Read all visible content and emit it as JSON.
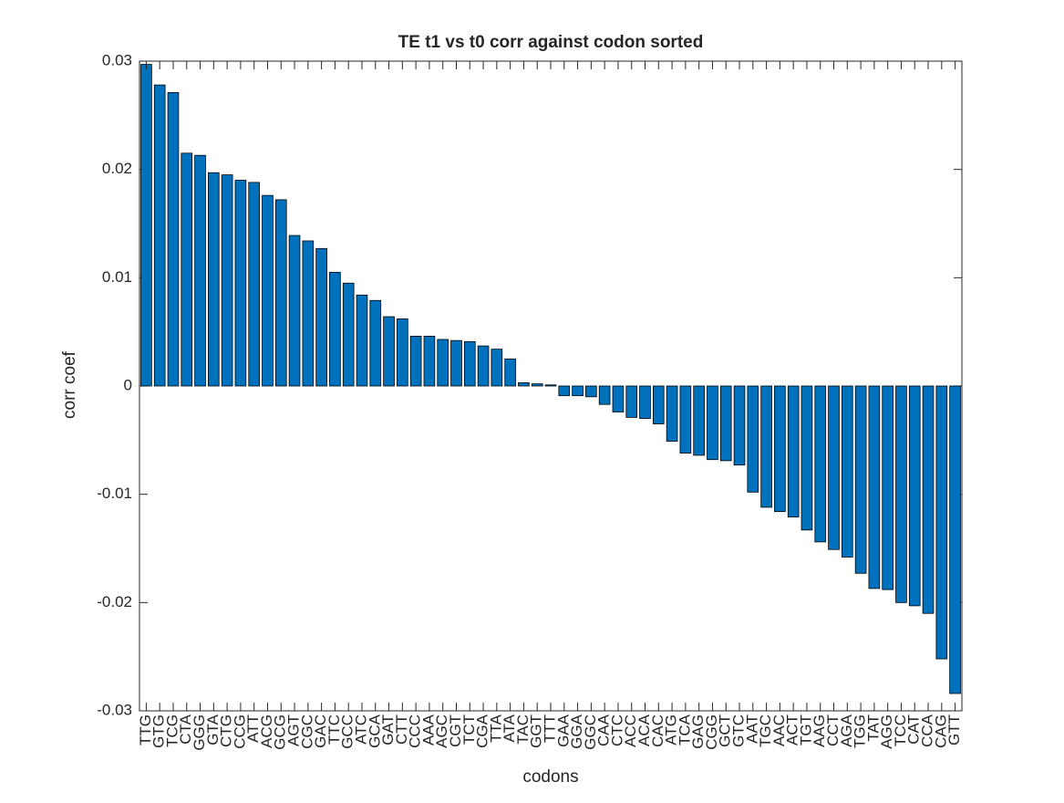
{
  "chart_data": {
    "type": "bar",
    "title": "TE t1 vs t0 corr against codon sorted",
    "xlabel": "codons",
    "ylabel": "corr coef",
    "categories": [
      "TTG",
      "GTG",
      "TCG",
      "CTA",
      "GGG",
      "GTA",
      "CTG",
      "CCG",
      "ATT",
      "ACG",
      "GCG",
      "AGT",
      "CGC",
      "GAC",
      "TTC",
      "GCC",
      "ATC",
      "GCA",
      "GAT",
      "CTT",
      "CCC",
      "AAA",
      "AGC",
      "CGT",
      "TCT",
      "CGA",
      "TTA",
      "ATA",
      "TAC",
      "GGT",
      "TTT",
      "GAA",
      "GGA",
      "GGC",
      "CAA",
      "CTC",
      "ACC",
      "ACA",
      "CAC",
      "ATG",
      "TCA",
      "GAG",
      "CGG",
      "GCT",
      "GTC",
      "AAT",
      "TGC",
      "AAC",
      "ACT",
      "TGT",
      "AAG",
      "CCT",
      "AGA",
      "TGG",
      "TAT",
      "AGG",
      "TCC",
      "CAT",
      "CCA",
      "CAG",
      "GTT"
    ],
    "values": [
      0.0297,
      0.0278,
      0.0271,
      0.0215,
      0.0213,
      0.0197,
      0.0195,
      0.019,
      0.0188,
      0.0176,
      0.0172,
      0.0139,
      0.0134,
      0.0127,
      0.0105,
      0.0095,
      0.0084,
      0.0079,
      0.0064,
      0.0062,
      0.0046,
      0.0046,
      0.0043,
      0.0042,
      0.0041,
      0.0037,
      0.0034,
      0.0025,
      0.0003,
      0.0002,
      0.0001,
      -0.0009,
      -0.0009,
      -0.001,
      -0.0017,
      -0.0024,
      -0.0029,
      -0.003,
      -0.0035,
      -0.0051,
      -0.0062,
      -0.0064,
      -0.0068,
      -0.0069,
      -0.0073,
      -0.0098,
      -0.0112,
      -0.0116,
      -0.0121,
      -0.0133,
      -0.0144,
      -0.0151,
      -0.0158,
      -0.0173,
      -0.0187,
      -0.0188,
      -0.02,
      -0.0203,
      -0.021,
      -0.0252,
      -0.0284
    ],
    "color": "#0072bd",
    "ylim": [
      -0.03,
      0.03
    ],
    "yticks": [
      -0.03,
      -0.02,
      -0.01,
      0,
      0.01,
      0.02,
      0.03
    ],
    "grid": false
  }
}
